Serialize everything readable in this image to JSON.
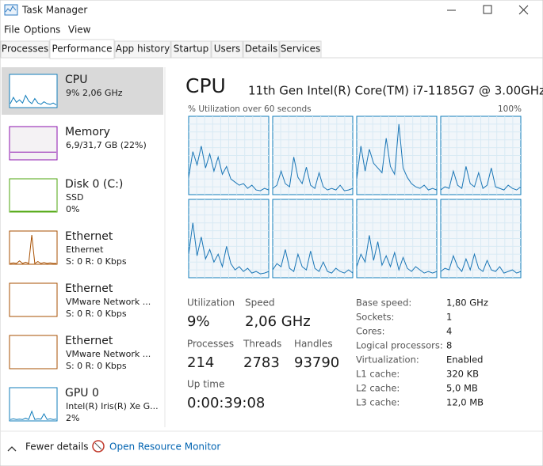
{
  "window": {
    "title": "Task Manager"
  },
  "menu": [
    "File",
    "Options",
    "View"
  ],
  "tabs": [
    "Processes",
    "Performance",
    "App history",
    "Startup",
    "Users",
    "Details",
    "Services"
  ],
  "sidebar": [
    {
      "name": "CPU",
      "lines": [
        "9% 2,06 GHz"
      ],
      "color": "#117dbb",
      "graph": [
        10,
        30,
        14,
        22,
        12,
        36,
        18,
        10,
        26,
        12,
        8,
        16,
        10,
        8,
        12,
        6
      ]
    },
    {
      "name": "Memory",
      "lines": [
        "6,9/31,7 GB (22%)"
      ],
      "color": "#8b12ae",
      "graph": [
        22,
        22,
        22,
        22,
        22,
        22,
        22,
        22,
        22,
        22,
        22,
        22,
        22,
        22,
        22,
        22
      ]
    },
    {
      "name": "Disk 0 (C:)",
      "lines": [
        "SSD",
        "0%"
      ],
      "color": "#4da60c",
      "graph": [
        0,
        0,
        0,
        0,
        0,
        0,
        0,
        0,
        0,
        0,
        0,
        0,
        0,
        0,
        0,
        0
      ]
    },
    {
      "name": "Ethernet",
      "lines": [
        "Ethernet",
        "S: 0 R: 0 Kbps"
      ],
      "color": "#a74f01",
      "graph": [
        0,
        2,
        0,
        8,
        0,
        4,
        0,
        90,
        0,
        6,
        0,
        3,
        0,
        2,
        0,
        0
      ]
    },
    {
      "name": "Ethernet",
      "lines": [
        "VMware Network ...",
        "S: 0 R: 0 Kbps"
      ],
      "color": "#a74f01"
    },
    {
      "name": "Ethernet",
      "lines": [
        "VMware Network ...",
        "S: 0 R: 0 Kbps"
      ],
      "color": "#a74f01"
    },
    {
      "name": "GPU 0",
      "lines": [
        "Intel(R) Iris(R) Xe G...",
        "2%"
      ],
      "color": "#117dbb",
      "graph": [
        2,
        4,
        2,
        3,
        2,
        6,
        2,
        28,
        2,
        4,
        3,
        20,
        2,
        4,
        2,
        3
      ]
    }
  ],
  "main": {
    "title": "CPU",
    "model": "11th Gen Intel(R) Core(TM) i7-1185G7 @ 3.00GHz",
    "graph_label": "% Utilization over 60 seconds",
    "graph_max": "100%",
    "ylim": [
      0,
      100
    ],
    "cores": [
      [
        22,
        55,
        38,
        62,
        34,
        52,
        30,
        48,
        26,
        36,
        20,
        16,
        12,
        14,
        8,
        12,
        6,
        5,
        8,
        6
      ],
      [
        8,
        12,
        30,
        14,
        10,
        48,
        22,
        14,
        35,
        12,
        8,
        28,
        10,
        6,
        8,
        6,
        12,
        5,
        6,
        8
      ],
      [
        20,
        62,
        30,
        58,
        40,
        34,
        28,
        72,
        36,
        26,
        90,
        34,
        22,
        14,
        10,
        8,
        12,
        6,
        8,
        6
      ],
      [
        6,
        10,
        8,
        30,
        12,
        8,
        36,
        14,
        10,
        28,
        8,
        12,
        34,
        10,
        8,
        6,
        12,
        8,
        6,
        10
      ],
      [
        30,
        70,
        28,
        52,
        24,
        36,
        20,
        30,
        14,
        40,
        18,
        10,
        14,
        8,
        12,
        6,
        8,
        5,
        6,
        8
      ],
      [
        10,
        18,
        14,
        36,
        12,
        8,
        30,
        14,
        10,
        34,
        12,
        8,
        20,
        8,
        6,
        12,
        8,
        6,
        10,
        6
      ],
      [
        14,
        30,
        20,
        54,
        22,
        46,
        16,
        28,
        14,
        32,
        10,
        26,
        12,
        8,
        14,
        10,
        6,
        8,
        6,
        8
      ],
      [
        8,
        12,
        10,
        28,
        14,
        8,
        24,
        10,
        30,
        12,
        8,
        22,
        10,
        8,
        14,
        6,
        8,
        10,
        6,
        8
      ]
    ],
    "stats": [
      {
        "label": "Utilization",
        "value": "9%"
      },
      {
        "label": "Speed",
        "value": "2,06 GHz"
      },
      {
        "label": "Processes",
        "value": "214"
      },
      {
        "label": "Threads",
        "value": "2783"
      },
      {
        "label": "Handles",
        "value": "93790"
      },
      {
        "label": "Up time",
        "value": "0:00:39:08"
      }
    ],
    "specs": [
      {
        "label": "Base speed:",
        "value": "1,80 GHz"
      },
      {
        "label": "Sockets:",
        "value": "1"
      },
      {
        "label": "Cores:",
        "value": "4"
      },
      {
        "label": "Logical processors:",
        "value": "8"
      },
      {
        "label": "Virtualization:",
        "value": "Enabled"
      },
      {
        "label": "L1 cache:",
        "value": "320 KB"
      },
      {
        "label": "L2 cache:",
        "value": "5,0 MB"
      },
      {
        "label": "L3 cache:",
        "value": "12,0 MB"
      }
    ]
  },
  "footer": {
    "fewer": "Fewer details",
    "link": "Open Resource Monitor"
  }
}
